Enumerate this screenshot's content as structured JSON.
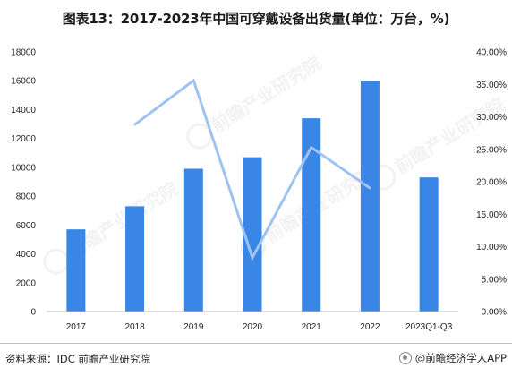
{
  "title": "图表13：2017-2023年中国可穿戴设备出货量(单位：万台，%)",
  "source": "资料来源：IDC 前瞻产业研究院",
  "brand": "@前瞻经济学人APP",
  "watermark_text": "前瞻产业研究院",
  "colors": {
    "bar": "#3a86e6",
    "line": "#9ec3f2",
    "grid": "#ffffff",
    "axis": "#bbbbbb"
  },
  "chart_data": {
    "type": "bar",
    "categories": [
      "2017",
      "2018",
      "2019",
      "2020",
      "2021",
      "2022",
      "2023Q1-Q3"
    ],
    "series": [
      {
        "type": "bar",
        "axis": "left",
        "values": [
          5700,
          7300,
          9900,
          10700,
          13400,
          16000,
          9300
        ]
      },
      {
        "type": "line",
        "axis": "right",
        "values": [
          null,
          28.8,
          35.6,
          8.3,
          25.3,
          19.0,
          null
        ]
      }
    ],
    "ylim_left": [
      0,
      18000
    ],
    "yticks_left": [
      "0",
      "2000",
      "4000",
      "6000",
      "8000",
      "10000",
      "12000",
      "14000",
      "16000",
      "18000"
    ],
    "ylim_right": [
      0,
      40
    ],
    "yticks_right": [
      "0.00%",
      "5.00%",
      "10.00%",
      "15.00%",
      "20.00%",
      "25.00%",
      "30.00%",
      "35.00%",
      "40.00%"
    ],
    "grid": false
  }
}
